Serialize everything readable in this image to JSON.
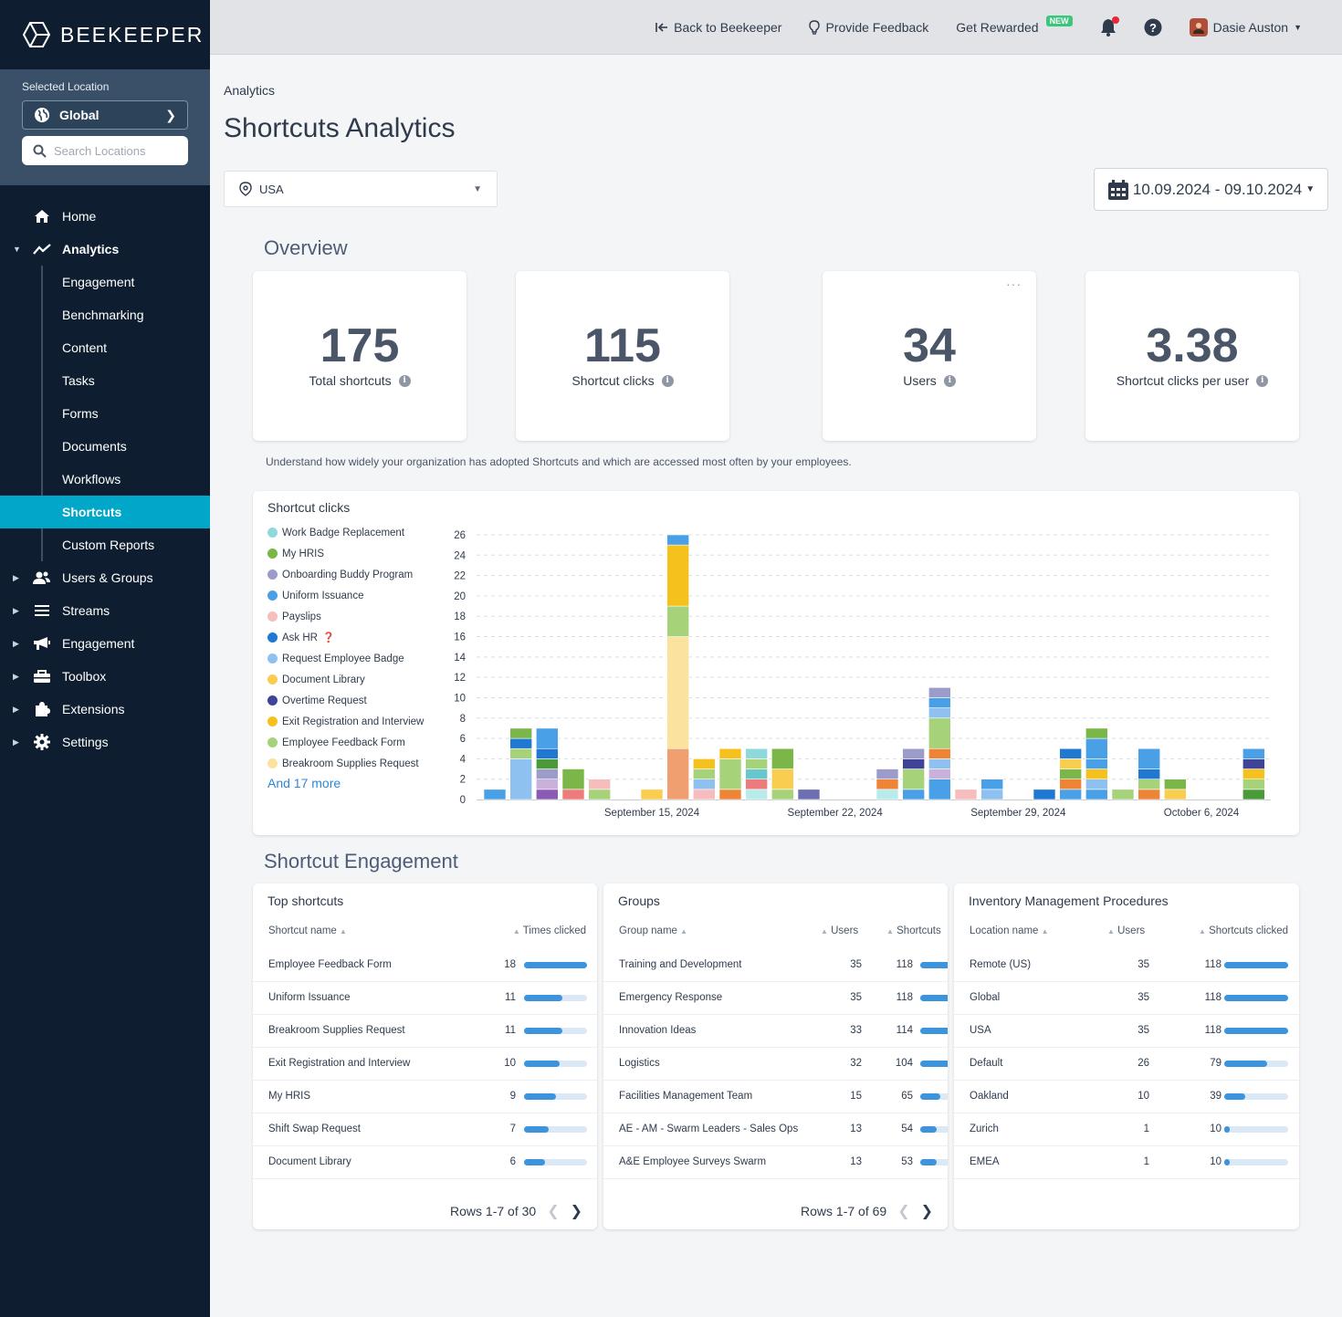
{
  "brand": "BEEKEEPER",
  "sidebar": {
    "selected_location_label": "Selected Location",
    "location_value": "Global",
    "search_placeholder": "Search Locations",
    "home": "Home",
    "analytics": "Analytics",
    "analytics_sub": [
      "Engagement",
      "Benchmarking",
      "Content",
      "Tasks",
      "Forms",
      "Documents",
      "Workflows",
      "Shortcuts",
      "Custom Reports"
    ],
    "users_groups": "Users & Groups",
    "streams": "Streams",
    "engagement": "Engagement",
    "toolbox": "Toolbox",
    "extensions": "Extensions",
    "settings": "Settings"
  },
  "topbar": {
    "back": "Back to Beekeeper",
    "feedback": "Provide Feedback",
    "rewarded": "Get Rewarded",
    "new_badge": "NEW",
    "user_name": "Dasie Auston"
  },
  "page": {
    "breadcrumb": "Analytics",
    "title": "Shortcuts Analytics",
    "country": "USA",
    "date_range": "10.09.2024 - 09.10.2024",
    "overview_title": "Overview",
    "engagement_title": "Shortcut Engagement",
    "description": "Understand how widely your organization has adopted Shortcuts and which are accessed most often by your employees."
  },
  "stats": [
    {
      "value": "175",
      "label": "Total shortcuts"
    },
    {
      "value": "115",
      "label": "Shortcut clicks"
    },
    {
      "value": "34",
      "label": "Users"
    },
    {
      "value": "3.38",
      "label": "Shortcut clicks per user"
    }
  ],
  "chart_data": {
    "type": "bar",
    "stacked": true,
    "title": "Shortcut clicks",
    "ylim": [
      0,
      26
    ],
    "y_ticks": [
      0,
      2,
      4,
      6,
      8,
      10,
      12,
      14,
      16,
      18,
      20,
      22,
      24,
      26
    ],
    "x_tick_labels": [
      {
        "index": 6,
        "label": "September 15, 2024"
      },
      {
        "index": 13,
        "label": "September 22, 2024"
      },
      {
        "index": 20,
        "label": "September 29, 2024"
      },
      {
        "index": 27,
        "label": "October 6, 2024"
      }
    ],
    "legend": [
      {
        "name": "Work Badge Replacement",
        "color": "#8fd8dc"
      },
      {
        "name": "My HRIS",
        "color": "#7ab648"
      },
      {
        "name": "Onboarding Buddy Program",
        "color": "#9b9cc9"
      },
      {
        "name": "Uniform Issuance",
        "color": "#4aa0e6"
      },
      {
        "name": "Payslips",
        "color": "#f7bcbc"
      },
      {
        "name": "Ask HR",
        "color": "#1f78d1"
      },
      {
        "name": "Request Employee Badge",
        "color": "#8ec1ef"
      },
      {
        "name": "Document Library",
        "color": "#f8cd50"
      },
      {
        "name": "Overtime Request",
        "color": "#3f4496"
      },
      {
        "name": "Exit Registration and Interview",
        "color": "#f5c11c"
      },
      {
        "name": "Employee Feedback Form",
        "color": "#a6d27a"
      },
      {
        "name": "Breakroom Supplies Request",
        "color": "#fbe39f"
      }
    ],
    "legend_more": "And 17 more",
    "ask_hr_mark": "❓",
    "days": [
      [
        {
          "v": 1,
          "c": "#4aa0e6"
        }
      ],
      [
        {
          "v": 4,
          "c": "#8ec1ef"
        },
        {
          "v": 1,
          "c": "#a6d27a"
        },
        {
          "v": 1,
          "c": "#1f78d1"
        },
        {
          "v": 1,
          "c": "#7ab648"
        }
      ],
      [
        {
          "v": 1,
          "c": "#8a5ab5"
        },
        {
          "v": 1,
          "c": "#c9b1dc"
        },
        {
          "v": 1,
          "c": "#9b9cc9"
        },
        {
          "v": 1,
          "c": "#4b9a3a"
        },
        {
          "v": 1,
          "c": "#1f78d1"
        },
        {
          "v": 2,
          "c": "#4aa0e6"
        }
      ],
      [
        {
          "v": 1,
          "c": "#ee7b7b"
        },
        {
          "v": 2,
          "c": "#7ab648"
        }
      ],
      [
        {
          "v": 1,
          "c": "#a6d27a"
        },
        {
          "v": 1,
          "c": "#f7bcbc"
        }
      ],
      [],
      [
        {
          "v": 1,
          "c": "#f8cd50"
        }
      ],
      [
        {
          "v": 5,
          "c": "#f0a070"
        },
        {
          "v": 11,
          "c": "#fbe39f"
        },
        {
          "v": 3,
          "c": "#a6d27a"
        },
        {
          "v": 6,
          "c": "#f5c11c"
        },
        {
          "v": 1,
          "c": "#4aa0e6"
        }
      ],
      [
        {
          "v": 1,
          "c": "#f7bcbc"
        },
        {
          "v": 1,
          "c": "#8ec1ef"
        },
        {
          "v": 1,
          "c": "#a6d27a"
        },
        {
          "v": 1,
          "c": "#f5c11c"
        }
      ],
      [
        {
          "v": 1,
          "c": "#ee8436"
        },
        {
          "v": 3,
          "c": "#a6d27a"
        },
        {
          "v": 1,
          "c": "#f5c11c"
        }
      ],
      [
        {
          "v": 1,
          "c": "#b8ecec"
        },
        {
          "v": 1,
          "c": "#ee7b7b"
        },
        {
          "v": 1,
          "c": "#67c7ce"
        },
        {
          "v": 1,
          "c": "#a6d27a"
        },
        {
          "v": 1,
          "c": "#8fd8dc"
        }
      ],
      [
        {
          "v": 1,
          "c": "#a6d27a"
        },
        {
          "v": 2,
          "c": "#f8cd50"
        },
        {
          "v": 2,
          "c": "#7ab648"
        }
      ],
      [
        {
          "v": 1,
          "c": "#6e6fb0"
        }
      ],
      [],
      [],
      [
        {
          "v": 1,
          "c": "#b8ecec"
        },
        {
          "v": 1,
          "c": "#ee8436"
        },
        {
          "v": 1,
          "c": "#9b9cc9"
        }
      ],
      [
        {
          "v": 1,
          "c": "#4aa0e6"
        },
        {
          "v": 2,
          "c": "#a6d27a"
        },
        {
          "v": 1,
          "c": "#3f4496"
        },
        {
          "v": 1,
          "c": "#9b9cc9"
        }
      ],
      [
        {
          "v": 2,
          "c": "#4aa0e6"
        },
        {
          "v": 1,
          "c": "#c9b1dc"
        },
        {
          "v": 1,
          "c": "#8ec1ef"
        },
        {
          "v": 1,
          "c": "#ee8436"
        },
        {
          "v": 3,
          "c": "#a6d27a"
        },
        {
          "v": 1,
          "c": "#8ec1ef"
        },
        {
          "v": 1,
          "c": "#4aa0e6"
        },
        {
          "v": 1,
          "c": "#9b9cc9"
        }
      ],
      [
        {
          "v": 1,
          "c": "#f7bcbc"
        }
      ],
      [
        {
          "v": 1,
          "c": "#8ec1ef"
        },
        {
          "v": 1,
          "c": "#4aa0e6"
        }
      ],
      [],
      [
        {
          "v": 1,
          "c": "#1f78d1"
        }
      ],
      [
        {
          "v": 1,
          "c": "#4aa0e6"
        },
        {
          "v": 1,
          "c": "#ee8436"
        },
        {
          "v": 1,
          "c": "#7ab648"
        },
        {
          "v": 1,
          "c": "#f8cd50"
        },
        {
          "v": 1,
          "c": "#1f78d1"
        }
      ],
      [
        {
          "v": 1,
          "c": "#4aa0e6"
        },
        {
          "v": 1,
          "c": "#8ec1ef"
        },
        {
          "v": 1,
          "c": "#f5c11c"
        },
        {
          "v": 1,
          "c": "#4aa0e6"
        },
        {
          "v": 2,
          "c": "#4aa0e6"
        },
        {
          "v": 1,
          "c": "#7ab648"
        }
      ],
      [
        {
          "v": 1,
          "c": "#a6d27a"
        }
      ],
      [
        {
          "v": 1,
          "c": "#ee8436"
        },
        {
          "v": 1,
          "c": "#a6d27a"
        },
        {
          "v": 1,
          "c": "#1f78d1"
        },
        {
          "v": 2,
          "c": "#4aa0e6"
        }
      ],
      [
        {
          "v": 1,
          "c": "#f8cd50"
        },
        {
          "v": 1,
          "c": "#7ab648"
        }
      ],
      [],
      [],
      [
        {
          "v": 1,
          "c": "#4b9a3a"
        },
        {
          "v": 1,
          "c": "#a6d27a"
        },
        {
          "v": 1,
          "c": "#f5c11c"
        },
        {
          "v": 1,
          "c": "#3f4496"
        },
        {
          "v": 1,
          "c": "#4aa0e6"
        }
      ]
    ]
  },
  "tables": {
    "top": {
      "title": "Top shortcuts",
      "col_name": "Shortcut name",
      "col_value": "Times clicked",
      "rows": [
        {
          "name": "Employee Feedback Form",
          "value": "18",
          "fill": 1.0
        },
        {
          "name": "Uniform Issuance",
          "value": "11",
          "fill": 0.61
        },
        {
          "name": "Breakroom Supplies Request",
          "value": "11",
          "fill": 0.61
        },
        {
          "name": "Exit Registration and Interview",
          "value": "10",
          "fill": 0.56
        },
        {
          "name": "My HRIS",
          "value": "9",
          "fill": 0.5
        },
        {
          "name": "Shift Swap Request",
          "value": "7",
          "fill": 0.39
        },
        {
          "name": "Document Library",
          "value": "6",
          "fill": 0.33
        }
      ],
      "pager": "Rows 1-7 of 30"
    },
    "groups": {
      "title": "Groups",
      "col_name": "Group name",
      "col_users": "Users",
      "col_value": "Shortcuts",
      "rows": [
        {
          "name": "Training and Development",
          "users": "35",
          "value": "118",
          "fill": 1.0
        },
        {
          "name": "Emergency Response",
          "users": "35",
          "value": "118",
          "fill": 1.0
        },
        {
          "name": "Innovation Ideas",
          "users": "33",
          "value": "114",
          "fill": 0.97
        },
        {
          "name": "Logistics",
          "users": "32",
          "value": "104",
          "fill": 0.88
        },
        {
          "name": "Facilities Management Team",
          "users": "15",
          "value": "65",
          "fill": 0.55
        },
        {
          "name": "AE - AM - Swarm Leaders - Sales Ops",
          "users": "13",
          "value": "54",
          "fill": 0.46
        },
        {
          "name": "A&E Employee Surveys Swarm",
          "users": "13",
          "value": "53",
          "fill": 0.45
        }
      ],
      "pager": "Rows 1-7 of 69"
    },
    "inventory": {
      "title": "Inventory Management Procedures",
      "col_name": "Location name",
      "col_users": "Users",
      "col_value": "Shortcuts clicked",
      "rows": [
        {
          "name": "Remote (US)",
          "users": "35",
          "value": "118",
          "fill": 1.0
        },
        {
          "name": "Global",
          "users": "35",
          "value": "118",
          "fill": 1.0
        },
        {
          "name": "USA",
          "users": "35",
          "value": "118",
          "fill": 1.0
        },
        {
          "name": "Default",
          "users": "26",
          "value": "79",
          "fill": 0.67
        },
        {
          "name": "Oakland",
          "users": "10",
          "value": "39",
          "fill": 0.33
        },
        {
          "name": "Zurich",
          "users": "1",
          "value": "10",
          "fill": 0.08
        },
        {
          "name": "EMEA",
          "users": "1",
          "value": "10",
          "fill": 0.08
        }
      ]
    }
  }
}
